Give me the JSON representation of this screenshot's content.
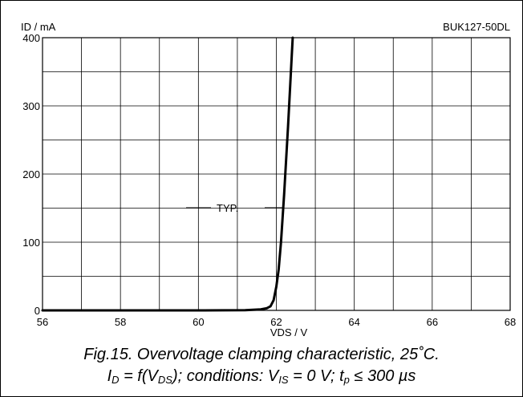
{
  "chart_data": {
    "type": "line",
    "title": "BUK127-50DL",
    "xlabel": "VDS / V",
    "ylabel": "ID / mA",
    "xlim": [
      56,
      68
    ],
    "ylim": [
      0,
      400
    ],
    "x_ticks": [
      56,
      58,
      60,
      62,
      64,
      66,
      68
    ],
    "y_ticks": [
      0,
      100,
      200,
      300,
      400
    ],
    "grid": true,
    "annotations": [
      "TYP."
    ],
    "series": [
      {
        "name": "",
        "x": [
          56,
          58,
          60,
          61.2,
          61.6,
          61.75,
          61.85,
          61.93,
          62.0,
          62.06,
          62.12,
          62.2,
          62.3,
          62.42
        ],
        "y": [
          0,
          0,
          0,
          0.3,
          1.5,
          3,
          6,
          15,
          35,
          60,
          100,
          170,
          270,
          400
        ]
      }
    ]
  },
  "caption": {
    "line1": "Fig.15.   Overvoltage clamping characteristic, 25˚C.",
    "line2": {
      "i": "I",
      "i_sub": "D",
      "eq": " = f(V",
      "vds_sub": "DS",
      "cond": "); conditions: V",
      "vis_sub": "IS",
      "rest": " = 0 V; t",
      "tp_sub": "p",
      "end": " ≤ 300 µs"
    }
  }
}
